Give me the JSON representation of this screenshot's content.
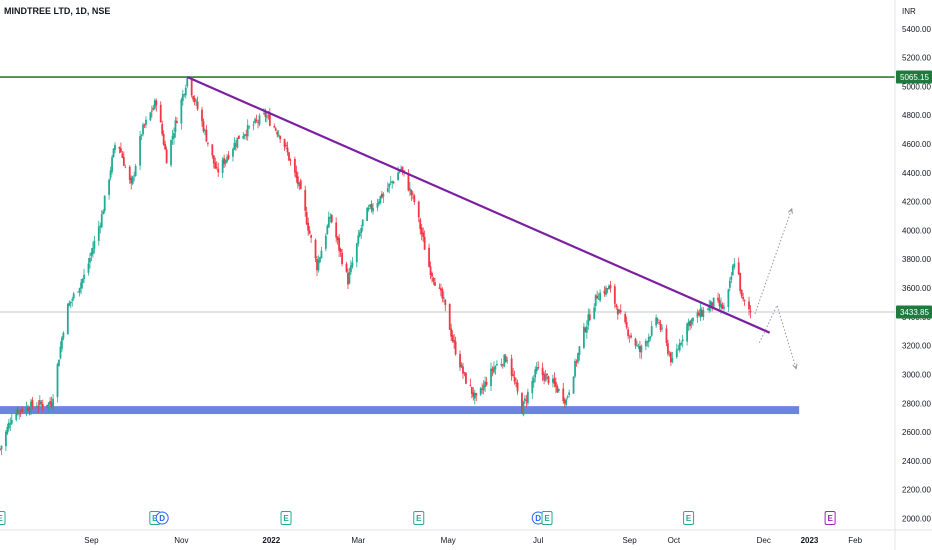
{
  "title": "MINDTREE LTD, 1D, NSE",
  "currency": "INR",
  "chart_data": {
    "type": "candlestick",
    "symbol": "MINDTREE LTD",
    "interval": "1D",
    "exchange": "NSE",
    "y_ticks": [
      2000,
      2200,
      2400,
      2600,
      2800,
      3000,
      3200,
      3400,
      3600,
      3800,
      4000,
      4200,
      4400,
      4600,
      4800,
      5000,
      5200,
      5400
    ],
    "y_tick_labels": [
      "2000.00",
      "2200.00",
      "2400.00",
      "2600.00",
      "2800.00",
      "3000.00",
      "3200.00",
      "3400.00",
      "3600.00",
      "3800.00",
      "4000.00",
      "4200.00",
      "4400.00",
      "4600.00",
      "4800.00",
      "5000.00",
      "5200.00",
      "5400.00"
    ],
    "ylim": [
      1920,
      5600
    ],
    "x_labels": [
      "Sep",
      "Nov",
      "2022",
      "Mar",
      "May",
      "Jul",
      "Sep",
      "Oct",
      "Dec",
      "2023",
      "Feb"
    ],
    "x_label_dates": [
      "2021-09-01",
      "2021-11-01",
      "2022-01-01",
      "2022-03-01",
      "2022-05-01",
      "2022-07-01",
      "2022-09-01",
      "2022-10-01",
      "2022-12-01",
      "2023-01-01",
      "2023-02-01"
    ],
    "xlim": [
      "2021-07-01",
      "2023-02-28"
    ],
    "price_path": [
      [
        "2021-07-01",
        2480
      ],
      [
        "2021-07-10",
        2740
      ],
      [
        "2021-07-25",
        2790
      ],
      [
        "2021-08-05",
        2800
      ],
      [
        "2021-08-15",
        3450
      ],
      [
        "2021-08-28",
        3700
      ],
      [
        "2021-09-08",
        4100
      ],
      [
        "2021-09-18",
        4650
      ],
      [
        "2021-09-28",
        4300
      ],
      [
        "2021-10-05",
        4680
      ],
      [
        "2021-10-15",
        4900
      ],
      [
        "2021-10-22",
        4500
      ],
      [
        "2021-11-05",
        5060
      ],
      [
        "2021-11-15",
        4750
      ],
      [
        "2021-11-25",
        4400
      ],
      [
        "2021-12-10",
        4650
      ],
      [
        "2021-12-28",
        4800
      ],
      [
        "2022-01-08",
        4650
      ],
      [
        "2022-01-20",
        4300
      ],
      [
        "2022-02-01",
        3750
      ],
      [
        "2022-02-10",
        4100
      ],
      [
        "2022-02-22",
        3650
      ],
      [
        "2022-03-05",
        4100
      ],
      [
        "2022-03-20",
        4280
      ],
      [
        "2022-03-30",
        4430
      ],
      [
        "2022-04-08",
        4200
      ],
      [
        "2022-04-18",
        3750
      ],
      [
        "2022-04-28",
        3500
      ],
      [
        "2022-05-05",
        3200
      ],
      [
        "2022-05-12",
        2980
      ],
      [
        "2022-05-20",
        2820
      ],
      [
        "2022-06-01",
        3050
      ],
      [
        "2022-06-10",
        3120
      ],
      [
        "2022-06-20",
        2760
      ],
      [
        "2022-06-30",
        3030
      ],
      [
        "2022-07-10",
        2950
      ],
      [
        "2022-07-20",
        2820
      ],
      [
        "2022-08-01",
        3300
      ],
      [
        "2022-08-10",
        3550
      ],
      [
        "2022-08-18",
        3600
      ],
      [
        "2022-08-28",
        3350
      ],
      [
        "2022-09-08",
        3160
      ],
      [
        "2022-09-20",
        3380
      ],
      [
        "2022-09-30",
        3080
      ],
      [
        "2022-10-10",
        3350
      ],
      [
        "2022-10-20",
        3430
      ],
      [
        "2022-10-28",
        3500
      ],
      [
        "2022-11-05",
        3450
      ],
      [
        "2022-11-12",
        3850
      ],
      [
        "2022-11-16",
        3520
      ],
      [
        "2022-11-22",
        3433.85
      ]
    ],
    "annotations": {
      "resistance_level": 5065.15,
      "current_price": 3433.85,
      "support_zone": [
        2725,
        2780
      ],
      "support_zone_end": "2022-12-25",
      "trendline": [
        [
          "2021-11-05",
          5065
        ],
        [
          "2022-12-05",
          3290
        ]
      ],
      "projection_up": [
        [
          "2022-11-25",
          3420
        ],
        [
          "2022-12-20",
          4150
        ]
      ],
      "projection_down": [
        [
          "2022-11-28",
          3220
        ],
        [
          "2022-12-10",
          3480
        ],
        [
          "2022-12-23",
          3040
        ]
      ]
    },
    "price_tags": [
      {
        "label": "5065.15",
        "color": "#1e7b3d"
      },
      {
        "label": "3433.85",
        "color": "#1e7b3d"
      }
    ],
    "events": [
      {
        "date": "2021-07-01",
        "letter": "E",
        "color": "#22ab94"
      },
      {
        "date": "2021-10-14",
        "letter": "E",
        "color": "#22ab94"
      },
      {
        "date": "2021-10-19",
        "letter": "D",
        "color": "#2962ff"
      },
      {
        "date": "2022-01-11",
        "letter": "E",
        "color": "#22ab94"
      },
      {
        "date": "2022-04-11",
        "letter": "E",
        "color": "#22ab94"
      },
      {
        "date": "2022-07-01",
        "letter": "D",
        "color": "#2962ff"
      },
      {
        "date": "2022-07-07",
        "letter": "E",
        "color": "#22ab94"
      },
      {
        "date": "2022-10-11",
        "letter": "E",
        "color": "#22ab94"
      },
      {
        "date": "2023-01-15",
        "letter": "E",
        "color": "#9c27b0"
      }
    ]
  },
  "colors": {
    "up": "#22ab94",
    "down": "#f23645",
    "resistance": "#2e7d32",
    "trendline": "#7b1fa2",
    "support": "#6a84e0",
    "price_line": "#b2b5be",
    "grid": "#e0e3eb",
    "text": "#131722"
  }
}
